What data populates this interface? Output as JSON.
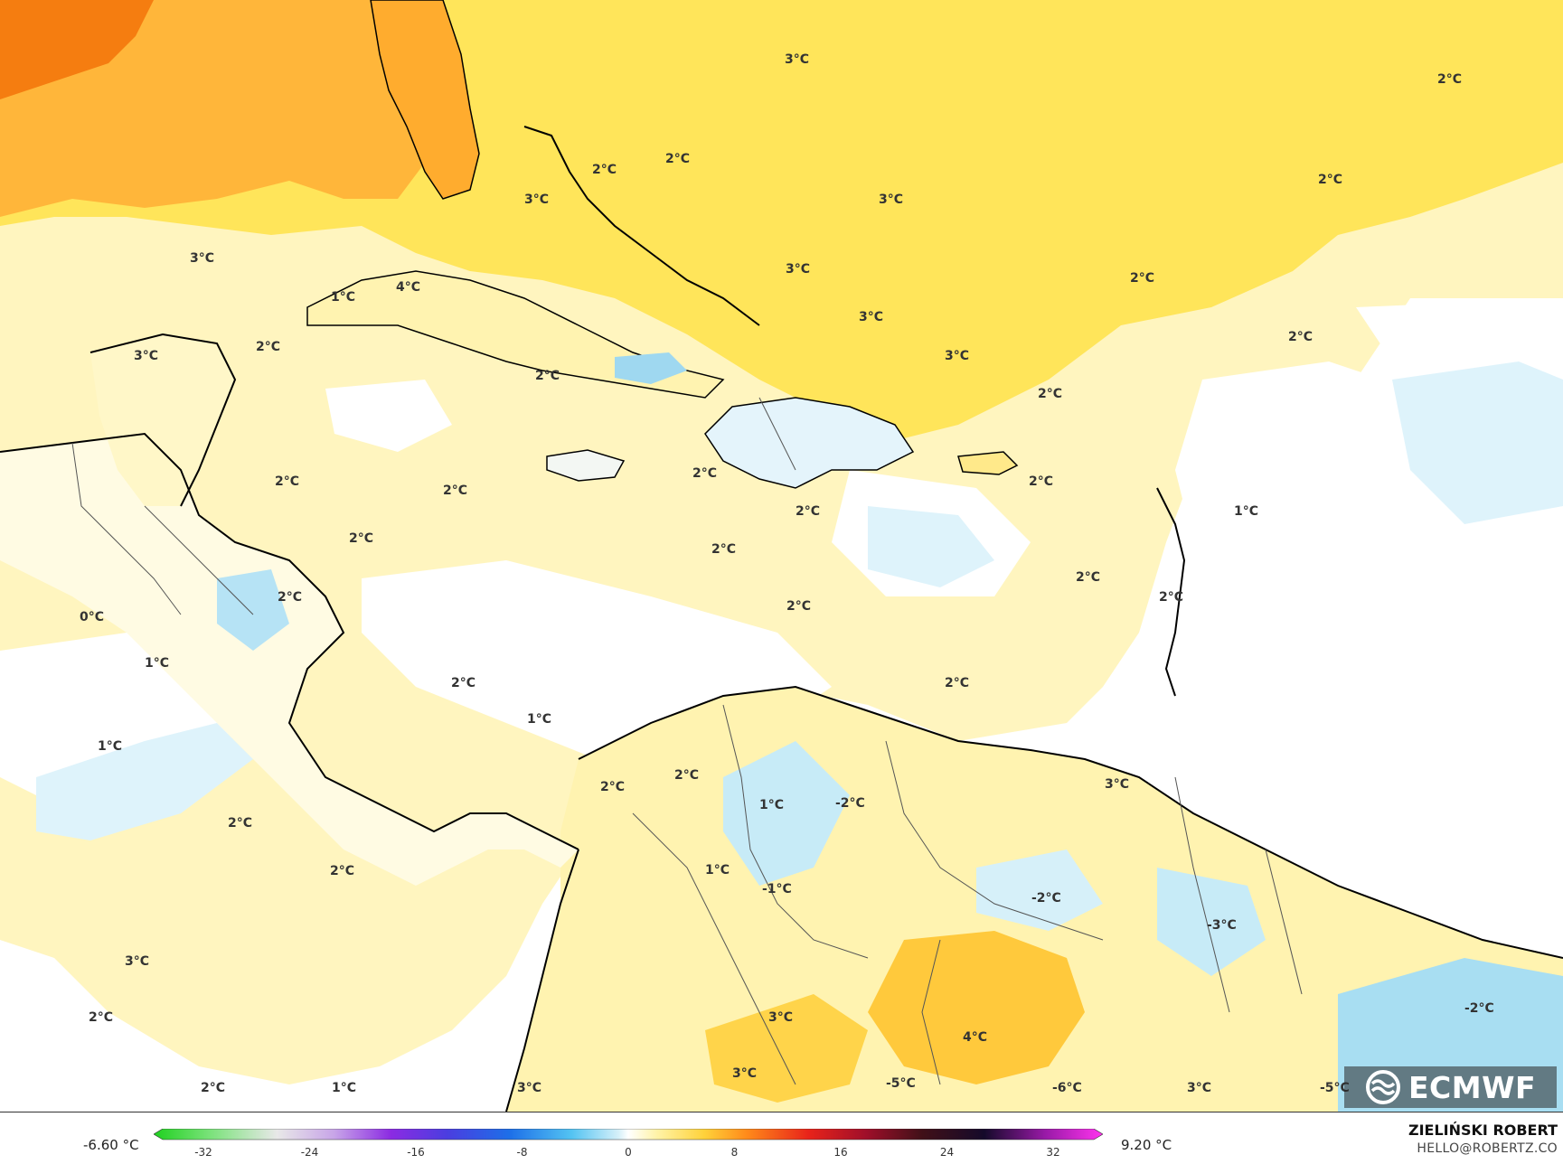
{
  "map": {
    "labels": [
      "3°C",
      "2°C",
      "2°C",
      "3°C",
      "2°C",
      "3°C",
      "3°C",
      "2°C",
      "3°C",
      "1°C",
      "4°C",
      "3°C",
      "2°C",
      "2°C",
      "2°C",
      "2°C",
      "2°C",
      "3°C",
      "3°C",
      "2°C",
      "2°C",
      "2°C",
      "2°C",
      "2°C",
      "2°C",
      "2°C",
      "1°C",
      "2°C",
      "0°C",
      "1°C",
      "2°C",
      "2°C",
      "1°C",
      "2°C",
      "2°C",
      "1°C",
      "2°C",
      "2°C",
      "2°C",
      "2°C",
      "1°C",
      "2°C",
      "1°C",
      "3°C",
      "-2°C",
      "3°C",
      "-1°C",
      "-2°C",
      "-3°C",
      "2°C",
      "3°C",
      "4°C",
      "-2°C",
      "3°C",
      "-5°C",
      "-6°C",
      "3°C",
      "-5°C",
      "3°C",
      "2°C",
      "1°C"
    ]
  },
  "colors": {
    "land_border": "#222222",
    "coast": "#000000"
  },
  "colorbar": {
    "min_label": "-6.60 °C",
    "max_label": "9.20 °C",
    "ticks": [
      "-32",
      "-24",
      "-16",
      "-8",
      "0",
      "8",
      "16",
      "24",
      "32"
    ]
  },
  "branding": {
    "logo_text": "ECMWF",
    "author": "ZIELIŃSKI ROBERT",
    "email": "HELLO@ROBERTZ.CO"
  }
}
